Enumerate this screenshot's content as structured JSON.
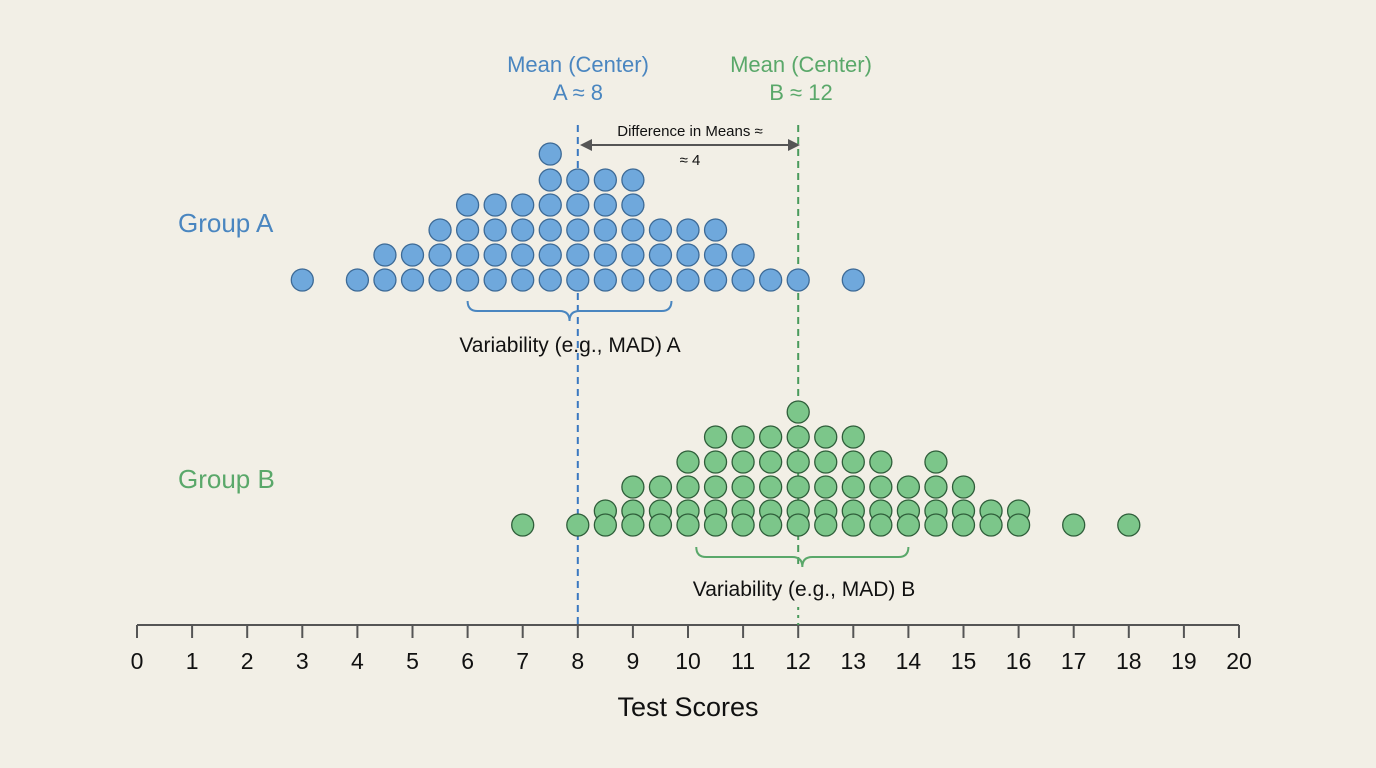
{
  "chart_data": {
    "type": "scatter",
    "subtype": "dot-plot",
    "xlabel": "Test Scores",
    "xlim": [
      0,
      20
    ],
    "x_ticks": [
      "0",
      "1",
      "2",
      "3",
      "4",
      "5",
      "6",
      "7",
      "8",
      "9",
      "10",
      "11",
      "12",
      "13",
      "14",
      "15",
      "16",
      "17",
      "18",
      "19",
      "20"
    ],
    "grid": false,
    "series": [
      {
        "name": "Group A",
        "color": "#6fa8dc",
        "stroke": "#3d6a96",
        "label_color": "#4a86c0",
        "stacks": [
          {
            "x": 3,
            "count": 1
          },
          {
            "x": 4,
            "count": 1
          },
          {
            "x": 4.5,
            "count": 2
          },
          {
            "x": 5,
            "count": 2
          },
          {
            "x": 5.5,
            "count": 3
          },
          {
            "x": 6,
            "count": 4
          },
          {
            "x": 6.5,
            "count": 4
          },
          {
            "x": 7,
            "count": 4
          },
          {
            "x": 7.5,
            "count": 6
          },
          {
            "x": 8,
            "count": 5
          },
          {
            "x": 8.5,
            "count": 5
          },
          {
            "x": 9,
            "count": 5
          },
          {
            "x": 9.5,
            "count": 3
          },
          {
            "x": 10,
            "count": 3
          },
          {
            "x": 10.5,
            "count": 3
          },
          {
            "x": 11,
            "count": 2
          },
          {
            "x": 11.5,
            "count": 1
          },
          {
            "x": 12,
            "count": 1
          },
          {
            "x": 13,
            "count": 1
          }
        ],
        "mean_label_line1": "Mean (Center)",
        "mean_label_line2": "A ≈ 8",
        "mean": 8,
        "variability_label": "Variability (e.g., MAD) A",
        "variability_range": [
          6,
          9.7
        ]
      },
      {
        "name": "Group B",
        "color": "#7cc68a",
        "stroke": "#2f5e3a",
        "label_color": "#5aa86a",
        "stacks": [
          {
            "x": 7,
            "count": 1
          },
          {
            "x": 8,
            "count": 1
          },
          {
            "x": 8.5,
            "count": 2
          },
          {
            "x": 9,
            "count": 3
          },
          {
            "x": 9.5,
            "count": 3
          },
          {
            "x": 10,
            "count": 4
          },
          {
            "x": 10.5,
            "count": 5
          },
          {
            "x": 11,
            "count": 5
          },
          {
            "x": 11.5,
            "count": 5
          },
          {
            "x": 12,
            "count": 6
          },
          {
            "x": 12.5,
            "count": 5
          },
          {
            "x": 13,
            "count": 5
          },
          {
            "x": 13.5,
            "count": 4
          },
          {
            "x": 14,
            "count": 3
          },
          {
            "x": 14.5,
            "count": 4
          },
          {
            "x": 15,
            "count": 3
          },
          {
            "x": 15.5,
            "count": 2
          },
          {
            "x": 16,
            "count": 2
          },
          {
            "x": 17,
            "count": 1
          },
          {
            "x": 18,
            "count": 1
          }
        ],
        "mean_label_line1": "Mean (Center)",
        "mean_label_line2": "B ≈ 12",
        "mean": 12,
        "variability_label": "Variability (e.g., MAD) B",
        "variability_range": [
          10.15,
          14
        ]
      }
    ],
    "annotations": {
      "difference_line1": "Difference in Means ≈",
      "difference_line2": "≈ 4"
    }
  }
}
